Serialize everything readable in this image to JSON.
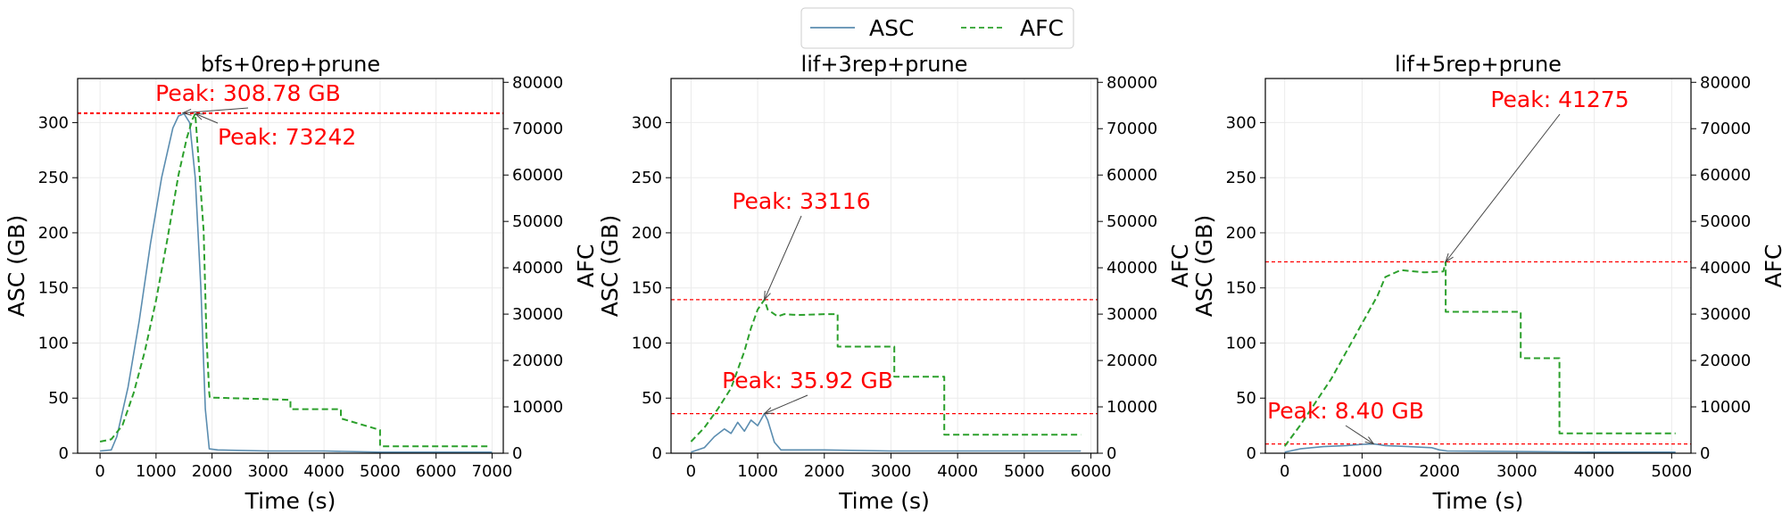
{
  "legend": {
    "placement": "top-center",
    "entries": [
      {
        "label": "ASC",
        "color": "#5b8db0",
        "style": "solid"
      },
      {
        "label": "AFC",
        "color": "#2ca02c",
        "style": "dashed"
      }
    ]
  },
  "colors": {
    "asc": "#5b8db0",
    "afc": "#2ca02c",
    "peak": "#ff0000"
  },
  "chart_data": [
    {
      "type": "line",
      "title": "bfs+0rep+prune",
      "xlabel": "Time (s)",
      "ylabel_left": "ASC (GB)",
      "ylabel_right": "AFC",
      "xlim": [
        -400,
        7200
      ],
      "xticks": [
        0,
        1000,
        2000,
        3000,
        4000,
        5000,
        6000,
        7000
      ],
      "ylim_left": [
        0,
        340
      ],
      "yticks_left": [
        0,
        50,
        100,
        150,
        200,
        250,
        300
      ],
      "ylim_right": [
        0,
        80820
      ],
      "yticks_right": [
        0,
        10000,
        20000,
        30000,
        40000,
        50000,
        60000,
        70000,
        80000
      ],
      "grid": true,
      "series": [
        {
          "name": "ASC",
          "axis": "left",
          "x": [
            0,
            200,
            300,
            500,
            700,
            900,
            1100,
            1300,
            1400,
            1500,
            1600,
            1700,
            1800,
            1880,
            1950,
            2100,
            3000,
            4000,
            5000,
            6000,
            7000
          ],
          "values": [
            2,
            3,
            15,
            60,
            120,
            190,
            250,
            295,
            306,
            308,
            300,
            250,
            150,
            40,
            4,
            3,
            2,
            2,
            1,
            1,
            1
          ]
        },
        {
          "name": "AFC",
          "axis": "left_right",
          "x": [
            0,
            200,
            400,
            600,
            800,
            1000,
            1200,
            1400,
            1550,
            1650,
            1700,
            1750,
            1850,
            1900,
            1950,
            1960,
            3400,
            3400,
            4300,
            4300,
            5000,
            5000,
            6950
          ],
          "values": [
            2500,
            3000,
            6000,
            13000,
            22000,
            33000,
            46000,
            60000,
            68000,
            72000,
            73242,
            65000,
            48000,
            25000,
            13000,
            12000,
            11500,
            9500,
            9500,
            7500,
            5000,
            1500,
            1500
          ]
        }
      ],
      "peaks": [
        {
          "series": "ASC",
          "label": "Peak: 308.78 GB",
          "x": 1480,
          "value": 308.78,
          "line_axis": "left"
        },
        {
          "series": "AFC",
          "label": "Peak: 73242",
          "x": 1700,
          "value": 73242,
          "line_axis": "right"
        }
      ]
    },
    {
      "type": "line",
      "title": "lif+3rep+prune",
      "xlabel": "Time (s)",
      "ylabel_left": "ASC (GB)",
      "ylabel_right": "AFC",
      "xlim": [
        -300,
        6100
      ],
      "xticks": [
        0,
        1000,
        2000,
        3000,
        4000,
        5000,
        6000
      ],
      "ylim_left": [
        0,
        340
      ],
      "yticks_left": [
        0,
        50,
        100,
        150,
        200,
        250,
        300
      ],
      "ylim_right": [
        0,
        80820
      ],
      "yticks_right": [
        0,
        10000,
        20000,
        30000,
        40000,
        50000,
        60000,
        70000,
        80000
      ],
      "grid": true,
      "series": [
        {
          "name": "ASC",
          "axis": "left",
          "x": [
            0,
            200,
            350,
            500,
            600,
            700,
            800,
            900,
            1000,
            1100,
            1150,
            1250,
            1350,
            2000,
            3000,
            4000,
            5000,
            5850
          ],
          "values": [
            1,
            5,
            15,
            22,
            18,
            28,
            20,
            30,
            25,
            35.92,
            30,
            10,
            3,
            3,
            2,
            2,
            2,
            2
          ]
        },
        {
          "name": "AFC",
          "axis": "right",
          "x": [
            0,
            200,
            400,
            600,
            700,
            800,
            900,
            1000,
            1100,
            1150,
            1200,
            1300,
            1400,
            1600,
            2000,
            2200,
            2200,
            2800,
            3050,
            3050,
            3800,
            3800,
            5850
          ],
          "values": [
            2500,
            5500,
            9500,
            14000,
            18000,
            22000,
            27000,
            31000,
            33116,
            31000,
            30500,
            29500,
            30000,
            29800,
            30000,
            30000,
            23000,
            23000,
            23000,
            16500,
            16500,
            4000,
            4000
          ]
        }
      ],
      "peaks": [
        {
          "series": "AFC",
          "label": "Peak: 33116",
          "x": 1100,
          "value": 33116,
          "line_axis": "right"
        },
        {
          "series": "ASC",
          "label": "Peak: 35.92 GB",
          "x": 1100,
          "value": 35.92,
          "line_axis": "left"
        }
      ]
    },
    {
      "type": "line",
      "title": "lif+5rep+prune",
      "xlabel": "Time (s)",
      "ylabel_left": "ASC (GB)",
      "ylabel_right": "AFC",
      "xlim": [
        -250,
        5250
      ],
      "xticks": [
        0,
        1000,
        2000,
        3000,
        4000,
        5000
      ],
      "ylim_left": [
        0,
        340
      ],
      "yticks_left": [
        0,
        50,
        100,
        150,
        200,
        250,
        300
      ],
      "ylim_right": [
        0,
        80820
      ],
      "yticks_right": [
        0,
        10000,
        20000,
        30000,
        40000,
        50000,
        60000,
        70000,
        80000
      ],
      "grid": true,
      "series": [
        {
          "name": "ASC",
          "axis": "left",
          "x": [
            0,
            200,
            500,
            800,
            1000,
            1150,
            1300,
            1600,
            1900,
            2000,
            2100,
            3000,
            4000,
            5050
          ],
          "values": [
            1,
            4,
            6,
            7,
            8,
            8.4,
            7,
            6,
            5,
            3,
            2,
            1.5,
            1,
            1
          ]
        },
        {
          "name": "AFC",
          "axis": "right",
          "x": [
            0,
            200,
            400,
            600,
            800,
            1000,
            1200,
            1300,
            1500,
            1800,
            2050,
            2080,
            2080,
            3050,
            3050,
            3550,
            3550,
            5050
          ],
          "values": [
            1500,
            6000,
            11000,
            16000,
            22000,
            28000,
            34000,
            38000,
            39500,
            39000,
            39200,
            41275,
            30500,
            30500,
            20500,
            20500,
            4300,
            4300
          ]
        }
      ],
      "peaks": [
        {
          "series": "AFC",
          "label": "Peak: 41275",
          "x": 2080,
          "value": 41275,
          "line_axis": "right"
        },
        {
          "series": "ASC",
          "label": "Peak: 8.40 GB",
          "x": 1150,
          "value": 8.4,
          "line_axis": "left"
        }
      ]
    }
  ]
}
